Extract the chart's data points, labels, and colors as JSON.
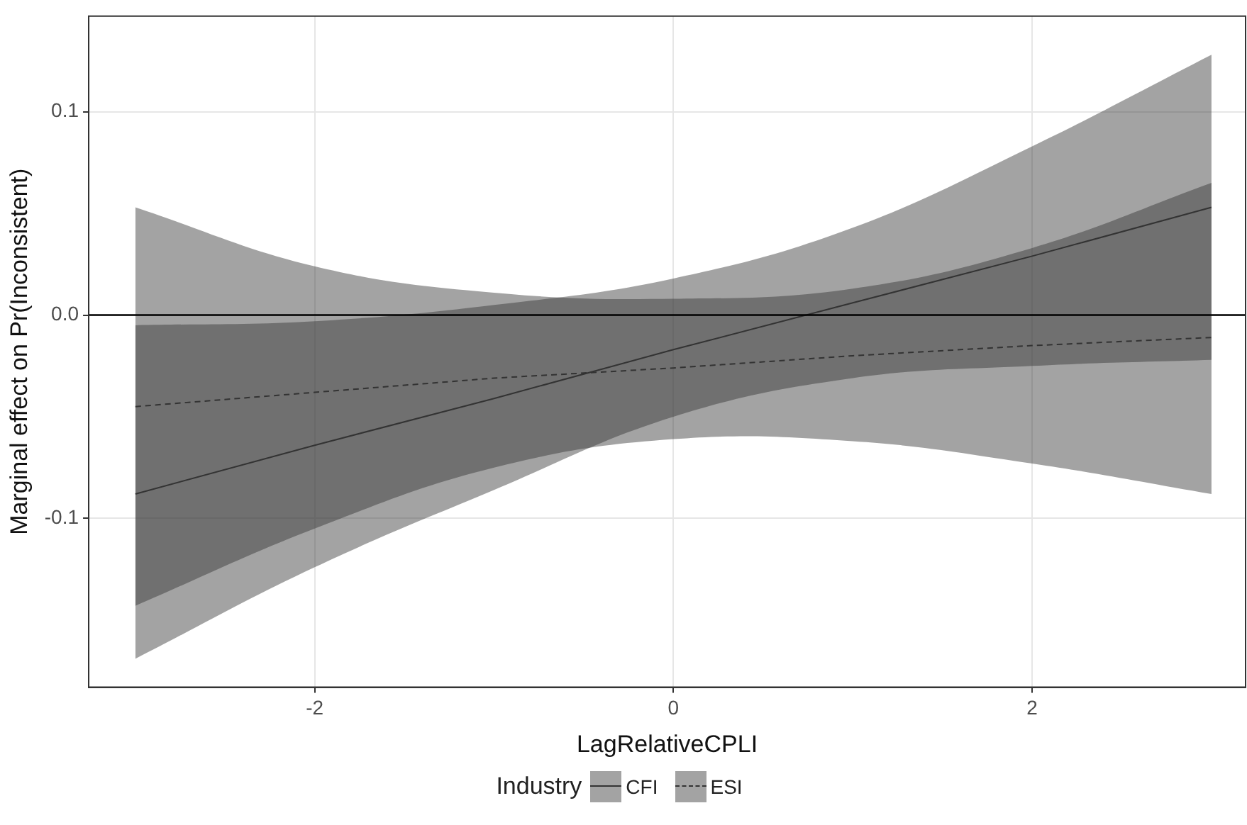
{
  "chart_data": {
    "type": "line",
    "xlabel": "LagRelativeCPLI",
    "ylabel": "Marginal effect on Pr(Inconsistent)",
    "legend_title": "Industry",
    "x": [
      -3,
      -2,
      -1,
      0,
      1,
      2,
      3
    ],
    "series": [
      {
        "name": "CFI",
        "color": "#333333",
        "line_style": "solid",
        "values": [
          -0.088,
          -0.064,
          -0.041,
          -0.017,
          0.006,
          0.029,
          0.053
        ],
        "lower": [
          -0.169,
          -0.124,
          -0.086,
          -0.05,
          -0.031,
          -0.025,
          -0.022
        ],
        "upper": [
          -0.005,
          -0.003,
          0.005,
          0.018,
          0.043,
          0.083,
          0.128
        ]
      },
      {
        "name": "ESI",
        "color": "#333333",
        "line_style": "dashed",
        "values": [
          -0.045,
          -0.038,
          -0.031,
          -0.026,
          -0.02,
          -0.015,
          -0.011
        ],
        "lower": [
          -0.143,
          -0.105,
          -0.075,
          -0.061,
          -0.062,
          -0.073,
          -0.088
        ],
        "upper": [
          0.053,
          0.024,
          0.011,
          0.008,
          0.013,
          0.033,
          0.065
        ]
      }
    ],
    "xlim": [
      -3.26,
      3.19
    ],
    "xticks": [
      -2,
      0,
      2
    ],
    "ylim": [
      -0.183,
      0.147
    ],
    "yticks": [
      {
        "value": -0.1,
        "label": "-0.1"
      },
      {
        "value": 0,
        "label": "0.0"
      },
      {
        "value": 0.1,
        "label": "0.1"
      }
    ],
    "ref_lines": [
      {
        "axis": "y",
        "value": 0,
        "color": "#000000"
      }
    ],
    "grid": true,
    "legend": "bottom",
    "marker": "none"
  }
}
